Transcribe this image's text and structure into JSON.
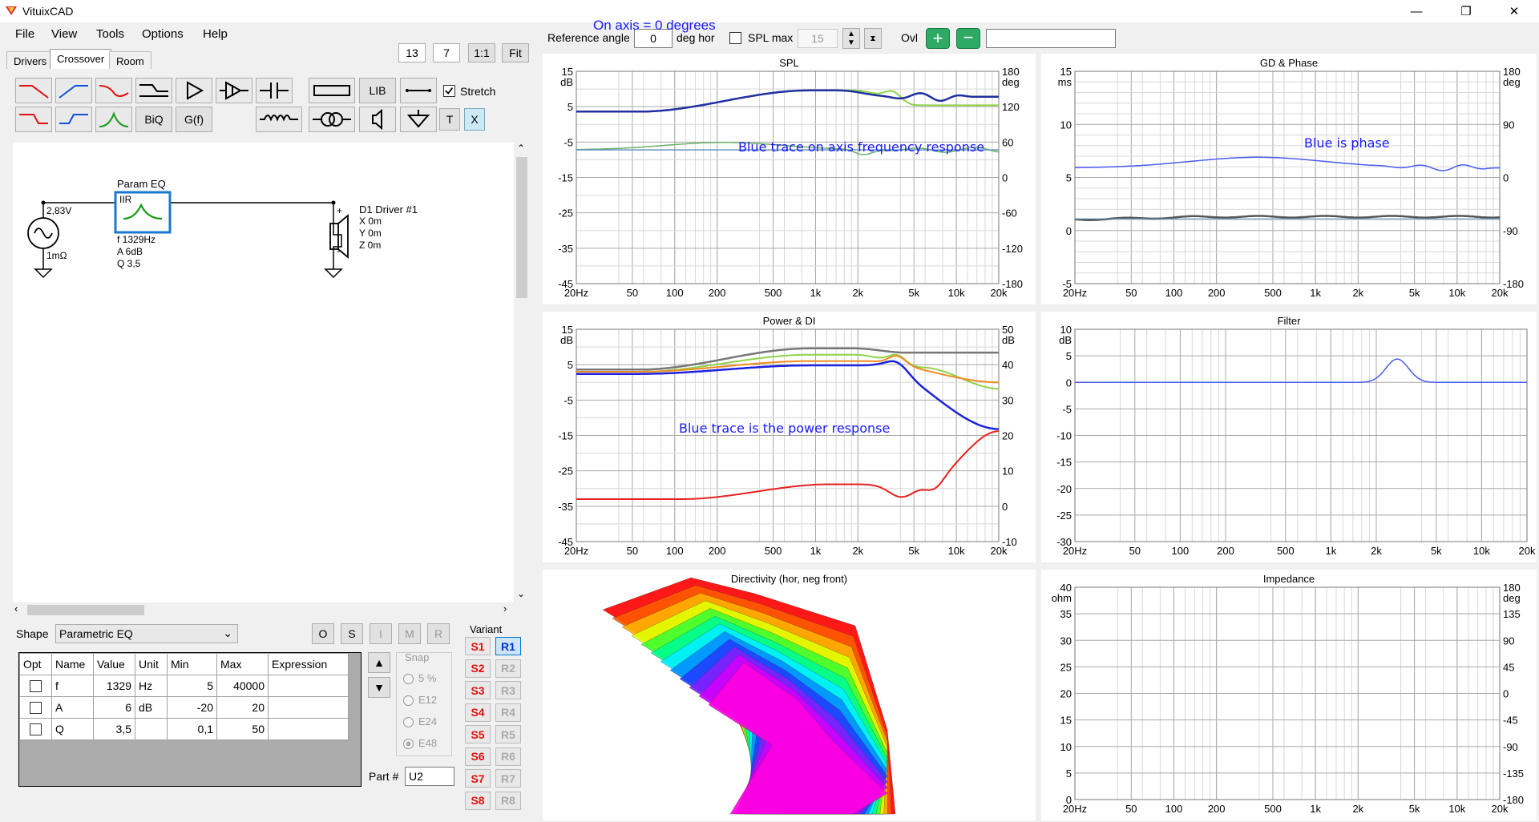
{
  "window": {
    "title": "VituixCAD",
    "min": "—",
    "restore": "❐",
    "close": "✕"
  },
  "menu": [
    "File",
    "View",
    "Tools",
    "Options",
    "Help"
  ],
  "tabs": [
    "Drivers",
    "Crossover",
    "Room"
  ],
  "zoom": {
    "a": "13",
    "b": "7",
    "one": "1:1",
    "fit": "Fit"
  },
  "toolbar": {
    "lib": "LIB",
    "biq": "BiQ",
    "gf": "G(f)",
    "t": "T",
    "x": "X",
    "stretch": "Stretch"
  },
  "schematic": {
    "source_v": "2,83V",
    "source_r": "1mΩ",
    "block_title": "Param EQ",
    "block_type": "IIR",
    "f": "f  1329Hz",
    "a": "A  6dB",
    "q": "Q  3,5",
    "driver": "D1 Driver #1",
    "dx": "X 0m",
    "dy": "Y 0m",
    "dz": "Z 0m",
    "plus": "+",
    "minus": "-"
  },
  "shape": {
    "label": "Shape",
    "value": "Parametric EQ",
    "o": "O",
    "s": "S",
    "i": "I",
    "m": "M",
    "r": "R"
  },
  "table": {
    "headers": [
      "Opt",
      "Name",
      "Value",
      "Unit",
      "Min",
      "Max",
      "Expression"
    ],
    "rows": [
      [
        "",
        "f",
        "1329",
        "Hz",
        "5",
        "40000",
        ""
      ],
      [
        "",
        "A",
        "6",
        "dB",
        "-20",
        "20",
        ""
      ],
      [
        "",
        "Q",
        "3,5",
        "",
        "0,1",
        "50",
        ""
      ]
    ]
  },
  "snap": {
    "label": "Snap",
    "opts": [
      "5 %",
      "E12",
      "E24",
      "E48"
    ]
  },
  "part": {
    "label": "Part #",
    "value": "U2"
  },
  "variant": {
    "label": "Variant",
    "s": [
      "S1",
      "S2",
      "S3",
      "S4",
      "S5",
      "S6",
      "S7",
      "S8"
    ],
    "r": [
      "R1",
      "R2",
      "R3",
      "R4",
      "R5",
      "R6",
      "R7",
      "R8"
    ]
  },
  "topbar": {
    "ref": "Reference angle",
    "ref_val": "0",
    "deg": "deg hor",
    "splmax": "SPL max",
    "splmax_val": "15",
    "ovl": "Ovl",
    "on_axis_note": "On axis = 0 degrees"
  },
  "annotations": {
    "spl": "Blue trace on axis frequency response",
    "phase": "Blue is phase",
    "power": "Blue trace is the power response"
  },
  "xticks": [
    "20Hz",
    "50",
    "100",
    "200",
    "500",
    "1k",
    "2k",
    "5k",
    "10k",
    "20k"
  ],
  "charts": {
    "spl": {
      "title": "SPL",
      "lunit": "dB",
      "runit": "deg",
      "left": [
        "15",
        "5",
        "-5",
        "-15",
        "-25",
        "-35",
        "-45"
      ],
      "right": [
        "180",
        "120",
        "60",
        "0",
        "-60",
        "-120",
        "-180"
      ]
    },
    "gd": {
      "title": "GD & Phase",
      "lunit": "ms",
      "runit": "deg",
      "left": [
        "15",
        "10",
        "5",
        "0",
        "-5"
      ],
      "right": [
        "180",
        "90",
        "0",
        "-90",
        "-180"
      ]
    },
    "power": {
      "title": "Power & DI",
      "lunit": "dB",
      "runit": "dB",
      "left": [
        "15",
        "5",
        "-5",
        "-15",
        "-25",
        "-35",
        "-45"
      ],
      "right": [
        "50",
        "40",
        "30",
        "20",
        "10",
        "0",
        "-10"
      ]
    },
    "filter": {
      "title": "Filter",
      "lunit": "dB",
      "left": [
        "10",
        "5",
        "0",
        "-5",
        "-10",
        "-15",
        "-20",
        "-25",
        "-30"
      ]
    },
    "dir": {
      "title": "Directivity (hor, neg front)"
    },
    "imp": {
      "title": "Impedance",
      "lunit": "ohm",
      "runit": "deg",
      "left": [
        "40",
        "35",
        "30",
        "25",
        "20",
        "15",
        "10",
        "5",
        "0"
      ],
      "right": [
        "180",
        "135",
        "90",
        "45",
        "0",
        "-45",
        "-90",
        "-135",
        "-180"
      ]
    }
  }
}
